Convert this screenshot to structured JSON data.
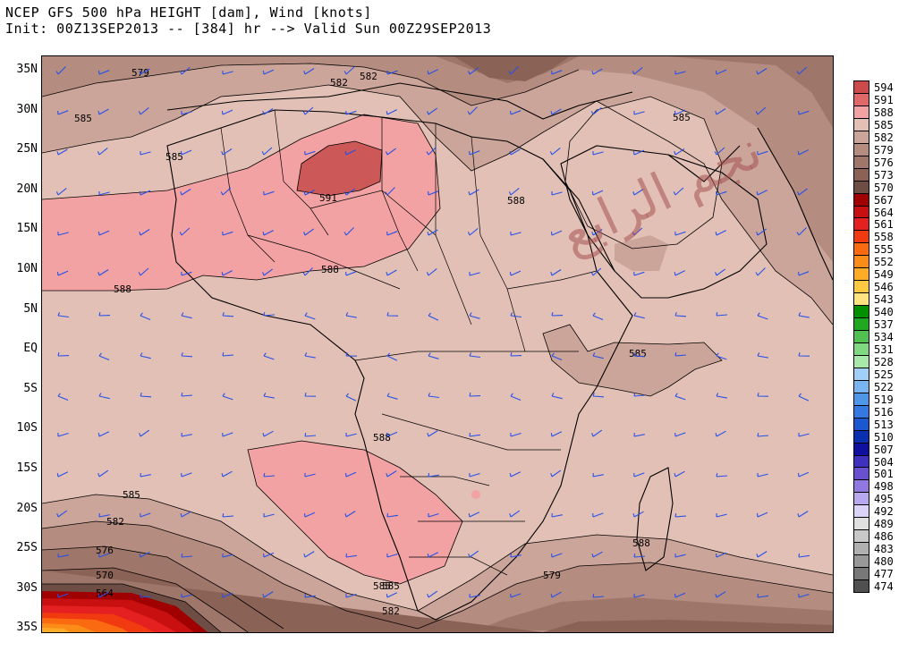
{
  "header": {
    "title_line1": "NCEP GFS 500 hPa HEIGHT [dam], Wind [knots]",
    "title_line2": "Init: 00Z13SEP2013 -- [384] hr --> Valid Sun 00Z29SEP2013"
  },
  "map": {
    "lat_labels": [
      "35N",
      "30N",
      "25N",
      "20N",
      "15N",
      "10N",
      "5N",
      "EQ",
      "5S",
      "10S",
      "15S",
      "20S",
      "25S",
      "30S",
      "35S"
    ],
    "contour_labels": [
      "579",
      "582",
      "585",
      "582",
      "585",
      "591",
      "588",
      "588",
      "588",
      "582",
      "585",
      "585",
      "588",
      "585",
      "582",
      "576",
      "570",
      "564",
      "588",
      "585",
      "579",
      "585"
    ],
    "watermark": "نجم الرابع"
  },
  "legend": {
    "items": [
      {
        "label": "594",
        "color": "#cc4a4a"
      },
      {
        "label": "591",
        "color": "#e06868"
      },
      {
        "label": "588",
        "color": "#f2a2a2"
      },
      {
        "label": "585",
        "color": "#e2c0b6"
      },
      {
        "label": "582",
        "color": "#cca59a"
      },
      {
        "label": "579",
        "color": "#b48c80"
      },
      {
        "label": "576",
        "color": "#9f766a"
      },
      {
        "label": "573",
        "color": "#8a6256"
      },
      {
        "label": "570",
        "color": "#6e4e44"
      },
      {
        "label": "567",
        "color": "#a00000"
      },
      {
        "label": "564",
        "color": "#c81010"
      },
      {
        "label": "561",
        "color": "#e42020"
      },
      {
        "label": "558",
        "color": "#f23a10"
      },
      {
        "label": "555",
        "color": "#fa6a10"
      },
      {
        "label": "552",
        "color": "#fc8c18"
      },
      {
        "label": "549",
        "color": "#feac28"
      },
      {
        "label": "546",
        "color": "#fec840"
      },
      {
        "label": "543",
        "color": "#fee480"
      },
      {
        "label": "540",
        "color": "#009000"
      },
      {
        "label": "537",
        "color": "#20a820"
      },
      {
        "label": "534",
        "color": "#50c050"
      },
      {
        "label": "531",
        "color": "#80d880"
      },
      {
        "label": "528",
        "color": "#a8e8a8"
      },
      {
        "label": "525",
        "color": "#a0d0f8"
      },
      {
        "label": "522",
        "color": "#78b4f0"
      },
      {
        "label": "519",
        "color": "#5096e8"
      },
      {
        "label": "516",
        "color": "#3478e0"
      },
      {
        "label": "513",
        "color": "#1a58d0"
      },
      {
        "label": "510",
        "color": "#0a30b0"
      },
      {
        "label": "507",
        "color": "#1010a0"
      },
      {
        "label": "504",
        "color": "#4030c0"
      },
      {
        "label": "501",
        "color": "#6850d0"
      },
      {
        "label": "498",
        "color": "#9078e0"
      },
      {
        "label": "495",
        "color": "#b8a8ee"
      },
      {
        "label": "492",
        "color": "#dcd4f8"
      },
      {
        "label": "489",
        "color": "#e0e0e0"
      },
      {
        "label": "486",
        "color": "#c8c8c8"
      },
      {
        "label": "483",
        "color": "#b0b0b0"
      },
      {
        "label": "480",
        "color": "#989898"
      },
      {
        "label": "477",
        "color": "#787878"
      },
      {
        "label": "474",
        "color": "#505050"
      }
    ]
  }
}
